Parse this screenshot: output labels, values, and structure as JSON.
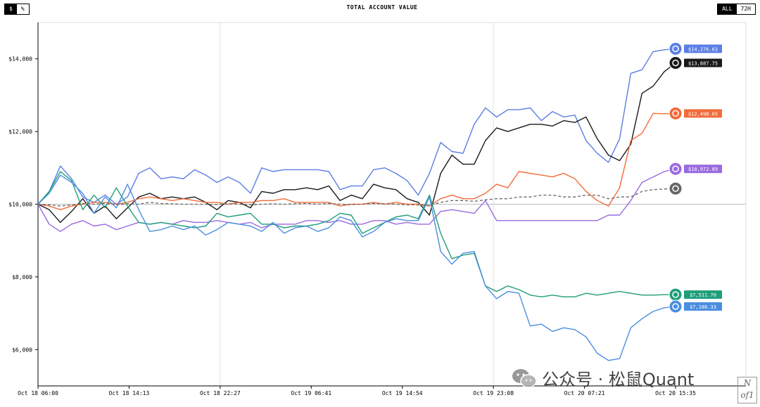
{
  "header": {
    "title": "TOTAL ACCOUNT VALUE",
    "unit_toggle": [
      "$",
      "%"
    ],
    "unit_active": "$",
    "range_toggle": [
      "ALL",
      "72H"
    ],
    "range_active": "ALL"
  },
  "watermark": {
    "text": "公众号 · 松鼠Quant",
    "corner_mark": "N\nof1"
  },
  "chart_data": {
    "type": "line",
    "title": "TOTAL ACCOUNT VALUE",
    "ylim": [
      5000,
      15000
    ],
    "ytick_values": [
      6000,
      8000,
      10000,
      12000,
      14000
    ],
    "ytick_labels": [
      "$6,000",
      "$8,000",
      "$10,000",
      "$12,000",
      "$14,000"
    ],
    "xtick_labels": [
      "Oct 18 06:00",
      "Oct 18 14:13",
      "Oct 18 22:27",
      "Oct 19 06:41",
      "Oct 19 14:54",
      "Oct 19 23:08",
      "Oct 20 07:21",
      "Oct 20 15:35"
    ],
    "vertical_gridlines_at_tick": [
      2,
      5
    ],
    "baseline": 10000,
    "series": [
      {
        "color": "#5b7ee5",
        "icon": "model-logo-blue-icon",
        "end_label": "$14,276.63",
        "values": [
          10000,
          10350,
          11050,
          10700,
          10200,
          10050,
          10250,
          10000,
          10200,
          10850,
          11000,
          10700,
          10750,
          10700,
          10950,
          10800,
          10600,
          10750,
          10600,
          10300,
          11000,
          10900,
          10950,
          10950,
          10950,
          10950,
          10900,
          10400,
          10500,
          10500,
          10950,
          11000,
          10850,
          10650,
          10250,
          10850,
          11700,
          11450,
          11400,
          12200,
          12650,
          12400,
          12600,
          12600,
          12650,
          12300,
          12550,
          12400,
          12450,
          11750,
          11400,
          11150,
          11800,
          13600,
          13700,
          14200,
          14250,
          14276.63
        ]
      },
      {
        "color": "#1a1a1a",
        "icon": "model-logo-black-icon",
        "end_label": "$13,887.75",
        "values": [
          10000,
          9850,
          9500,
          9800,
          10150,
          9750,
          9950,
          9600,
          9900,
          10200,
          10300,
          10150,
          10200,
          10150,
          10200,
          10050,
          9850,
          10100,
          10050,
          9900,
          10350,
          10300,
          10400,
          10400,
          10450,
          10400,
          10500,
          10100,
          10250,
          10150,
          10550,
          10450,
          10400,
          10150,
          10050,
          9700,
          10850,
          11350,
          11100,
          11100,
          11750,
          12100,
          12000,
          12100,
          12200,
          12200,
          12150,
          12300,
          12250,
          12400,
          11800,
          11350,
          11200,
          11650,
          13050,
          13250,
          13650,
          13887.75
        ]
      },
      {
        "color": "#f26b3a",
        "icon": "model-logo-orange-icon",
        "end_label": "$12,498.65",
        "values": [
          10000,
          9950,
          9850,
          9950,
          10000,
          10050,
          10050,
          10000,
          10050,
          10150,
          10200,
          10150,
          10100,
          10150,
          10100,
          10050,
          10050,
          10000,
          10050,
          10050,
          10100,
          10100,
          10150,
          10050,
          10050,
          10050,
          10050,
          9950,
          10000,
          10000,
          10050,
          10000,
          10050,
          10000,
          10000,
          9950,
          10150,
          10250,
          10150,
          10150,
          10300,
          10550,
          10450,
          10900,
          10850,
          10800,
          10750,
          10850,
          10700,
          10350,
          10100,
          9950,
          10450,
          11750,
          11950,
          12500,
          12490,
          12498.65
        ]
      },
      {
        "color": "#9a6ae0",
        "icon": "model-logo-purple-icon",
        "end_label": "$10,972.89",
        "values": [
          10000,
          9450,
          9250,
          9450,
          9550,
          9400,
          9450,
          9300,
          9400,
          9500,
          9450,
          9500,
          9450,
          9550,
          9500,
          9500,
          9550,
          9500,
          9450,
          9500,
          9350,
          9450,
          9450,
          9450,
          9550,
          9550,
          9500,
          9550,
          9450,
          9450,
          9550,
          9550,
          9450,
          9500,
          9450,
          9450,
          9800,
          9850,
          9800,
          9750,
          10100,
          9550,
          9550,
          9550,
          9550,
          9550,
          9550,
          9550,
          9550,
          9550,
          9550,
          9700,
          9700,
          10100,
          10600,
          10750,
          10900,
          10972.89
        ]
      },
      {
        "color": "#666666",
        "dashed": true,
        "icon": "bitcoin-icon",
        "end_label": "",
        "values": [
          10000,
          9980,
          9950,
          9980,
          10020,
          10000,
          10020,
          9980,
          10010,
          10000,
          10050,
          10020,
          10010,
          10000,
          10000,
          10000,
          9990,
          10010,
          10000,
          9980,
          10000,
          10010,
          10000,
          10010,
          10020,
          10000,
          10020,
          10000,
          9990,
          10000,
          10020,
          10010,
          10000,
          9980,
          9980,
          9970,
          10050,
          10100,
          10100,
          10080,
          10120,
          10150,
          10150,
          10200,
          10200,
          10250,
          10250,
          10200,
          10200,
          10250,
          10250,
          10150,
          10200,
          10200,
          10350,
          10400,
          10420,
          10430
        ]
      },
      {
        "color": "#1f9e7a",
        "icon": "openai-icon",
        "end_label": "$7,511.70",
        "values": [
          10000,
          10350,
          10900,
          10650,
          9850,
          10250,
          9900,
          10450,
          9950,
          9500,
          9450,
          9500,
          9450,
          9400,
          9350,
          9400,
          9750,
          9650,
          9700,
          9750,
          9450,
          9450,
          9350,
          9400,
          9400,
          9450,
          9550,
          9750,
          9700,
          9200,
          9350,
          9500,
          9650,
          9700,
          9600,
          10250,
          9200,
          8500,
          8600,
          8650,
          7750,
          7600,
          7750,
          7650,
          7500,
          7450,
          7500,
          7450,
          7450,
          7550,
          7500,
          7550,
          7600,
          7550,
          7500,
          7500,
          7510,
          7511.7
        ]
      },
      {
        "color": "#4b8ee0",
        "icon": "gemini-icon",
        "end_label": "$7,186.33",
        "values": [
          10000,
          10300,
          10800,
          10600,
          10300,
          9750,
          10200,
          9900,
          10550,
          9850,
          9250,
          9300,
          9400,
          9300,
          9400,
          9150,
          9300,
          9500,
          9450,
          9400,
          9250,
          9500,
          9200,
          9350,
          9400,
          9250,
          9350,
          9650,
          9550,
          9100,
          9250,
          9500,
          9600,
          9550,
          9550,
          10200,
          8700,
          8350,
          8650,
          8700,
          7750,
          7400,
          7600,
          7550,
          6650,
          6700,
          6500,
          6600,
          6550,
          6350,
          5900,
          5700,
          5750,
          6600,
          6850,
          7050,
          7150,
          7186.33
        ]
      }
    ]
  }
}
